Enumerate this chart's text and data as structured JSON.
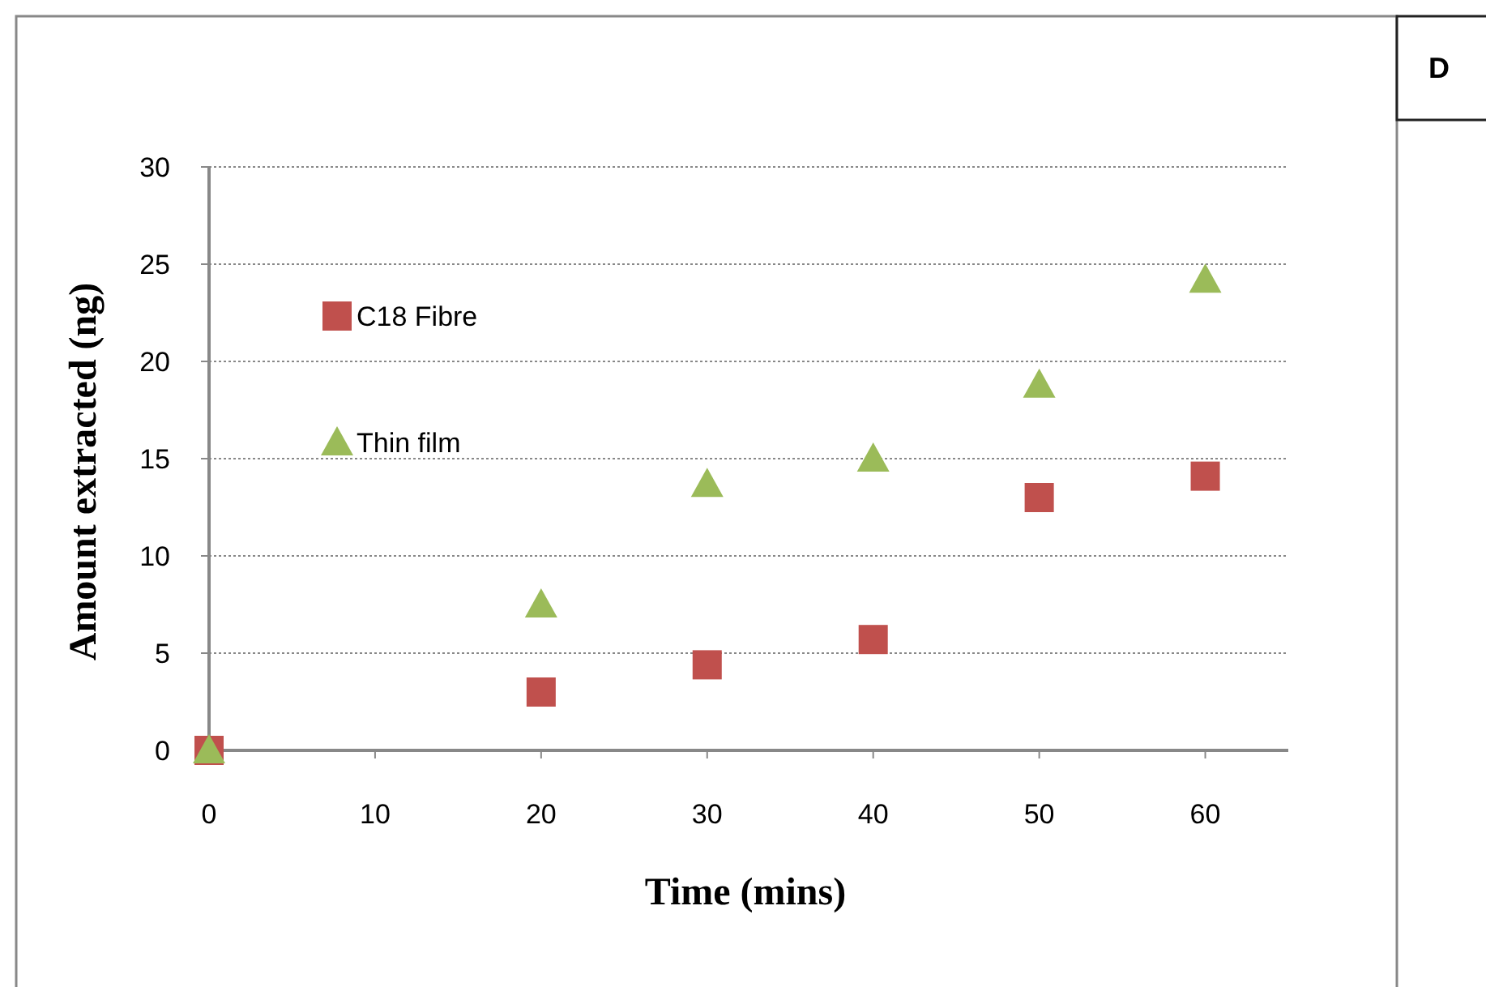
{
  "chart_data": {
    "type": "scatter",
    "xlabel": "Time (mins)",
    "ylabel": "Amount extracted (ng)",
    "x": [
      0,
      20,
      30,
      40,
      50,
      60
    ],
    "series": [
      {
        "name": "C18 Fibre",
        "color": "#c0504d",
        "marker": "square",
        "values": [
          0,
          3.0,
          4.4,
          5.7,
          13.0,
          14.1
        ]
      },
      {
        "name": "Thin film",
        "color": "#9bbb59",
        "marker": "triangle",
        "values": [
          0,
          7.5,
          13.7,
          15.0,
          18.8,
          24.2
        ]
      }
    ],
    "xlim": [
      0,
      65
    ],
    "xticks": [
      0,
      10,
      20,
      30,
      40,
      50,
      60
    ],
    "ylim": [
      0,
      30
    ],
    "yticks": [
      0,
      5,
      10,
      15,
      20,
      25,
      30
    ],
    "grid": "y",
    "legend": "top left",
    "annotations": [
      "D"
    ]
  }
}
